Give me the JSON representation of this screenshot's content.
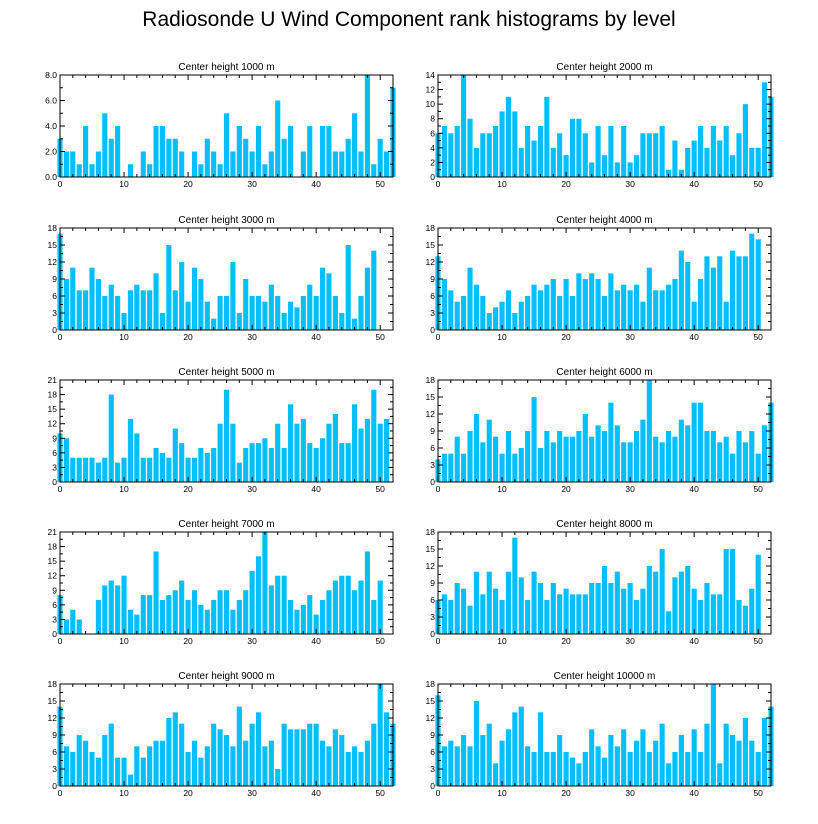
{
  "title": "Radiosonde U Wind Component rank histograms by level",
  "colors": {
    "bar": "#00bfff",
    "axis": "#000000"
  },
  "chart_data": [
    {
      "type": "bar",
      "title": "Center height 1000 m",
      "xlim": [
        0,
        52
      ],
      "xticks": [
        0,
        10,
        20,
        30,
        40,
        50
      ],
      "ylim": [
        0,
        8
      ],
      "yticks": [
        "0.0",
        "2.0",
        "4.0",
        "6.0",
        "8.0"
      ],
      "values": [
        3,
        2,
        2,
        1,
        4,
        1,
        2,
        5,
        3,
        4,
        0,
        1,
        0,
        2,
        1,
        4,
        4,
        3,
        3,
        2,
        0,
        2,
        1,
        3,
        2,
        1,
        5,
        2,
        4,
        3,
        2,
        4,
        1,
        2,
        6,
        3,
        4,
        0,
        2,
        4,
        0,
        4,
        4,
        2,
        2,
        3,
        5,
        2,
        8,
        1,
        3,
        2,
        7
      ]
    },
    {
      "type": "bar",
      "title": "Center height 2000 m",
      "xlim": [
        0,
        52
      ],
      "xticks": [
        0,
        10,
        20,
        30,
        40,
        50
      ],
      "ylim": [
        0,
        14
      ],
      "yticks": [
        "0",
        "2",
        "4",
        "6",
        "8",
        "10",
        "12",
        "14"
      ],
      "values": [
        6,
        7,
        6,
        7,
        14,
        8,
        4,
        6,
        6,
        7,
        9,
        11,
        9,
        4,
        7,
        5,
        7,
        11,
        4,
        6,
        3,
        8,
        8,
        6,
        2,
        7,
        3,
        7,
        2,
        7,
        2,
        3,
        6,
        6,
        6,
        7,
        1,
        5,
        1,
        4,
        5,
        7,
        4,
        7,
        5,
        7,
        3,
        6,
        10,
        4,
        4,
        13,
        11
      ]
    },
    {
      "type": "bar",
      "title": "Center height 3000 m",
      "xlim": [
        0,
        52
      ],
      "xticks": [
        0,
        10,
        20,
        30,
        40,
        50
      ],
      "ylim": [
        0,
        18
      ],
      "yticks": [
        "0",
        "3",
        "6",
        "9",
        "12",
        "15",
        "18"
      ],
      "values": [
        17,
        9,
        11,
        7,
        7,
        11,
        9,
        6,
        8,
        6,
        3,
        7,
        8,
        7,
        7,
        10,
        3,
        15,
        7,
        12,
        5,
        11,
        9,
        5,
        2,
        6,
        6,
        12,
        3,
        9,
        6,
        6,
        5,
        8,
        6,
        3,
        5,
        4,
        6,
        8,
        6,
        11,
        10,
        6,
        3,
        15,
        2,
        6,
        11,
        14
      ]
    },
    {
      "type": "bar",
      "title": "Center height 4000 m",
      "xlim": [
        0,
        52
      ],
      "xticks": [
        0,
        10,
        20,
        30,
        40,
        50
      ],
      "ylim": [
        0,
        18
      ],
      "yticks": [
        "0",
        "3",
        "6",
        "9",
        "12",
        "15",
        "18"
      ],
      "values": [
        13,
        9,
        7,
        5,
        6,
        11,
        8,
        6,
        3,
        4,
        5,
        7,
        3,
        5,
        6,
        8,
        7,
        8,
        9,
        6,
        9,
        6,
        10,
        9,
        10,
        9,
        6,
        10,
        7,
        8,
        7,
        8,
        5,
        11,
        7,
        7,
        8,
        9,
        14,
        12,
        5,
        9,
        13,
        11,
        13,
        5,
        14,
        13,
        13,
        17,
        16
      ]
    },
    {
      "type": "bar",
      "title": "Center height 5000 m",
      "xlim": [
        0,
        52
      ],
      "xticks": [
        0,
        10,
        20,
        30,
        40,
        50
      ],
      "ylim": [
        0,
        21
      ],
      "yticks": [
        "0",
        "3",
        "6",
        "9",
        "12",
        "15",
        "18",
        "21"
      ],
      "values": [
        10,
        9,
        5,
        5,
        5,
        5,
        4,
        5,
        18,
        4,
        5,
        13,
        10,
        5,
        5,
        7,
        6,
        5,
        11,
        8,
        5,
        5,
        7,
        6,
        7,
        12,
        19,
        12,
        4,
        7,
        8,
        8,
        9,
        7,
        12,
        7,
        16,
        12,
        13,
        8,
        7,
        9,
        12,
        14,
        8,
        8,
        16,
        11,
        13,
        19,
        12,
        13
      ]
    },
    {
      "type": "bar",
      "title": "Center height 6000 m",
      "xlim": [
        0,
        52
      ],
      "xticks": [
        0,
        10,
        20,
        30,
        40,
        50
      ],
      "ylim": [
        0,
        18
      ],
      "yticks": [
        "0",
        "3",
        "6",
        "9",
        "12",
        "15",
        "18"
      ],
      "values": [
        4,
        5,
        5,
        8,
        5,
        9,
        12,
        7,
        11,
        8,
        5,
        9,
        5,
        6,
        9,
        15,
        6,
        9,
        7,
        9,
        8,
        8,
        9,
        12,
        8,
        10,
        9,
        14,
        10,
        7,
        7,
        9,
        11,
        18,
        8,
        7,
        9,
        8,
        11,
        10,
        14,
        14,
        9,
        9,
        7,
        8,
        5,
        9,
        7,
        9,
        5,
        10,
        14
      ]
    },
    {
      "type": "bar",
      "title": "Center height 7000 m",
      "xlim": [
        0,
        52
      ],
      "xticks": [
        0,
        10,
        20,
        30,
        40,
        50
      ],
      "ylim": [
        0,
        21
      ],
      "yticks": [
        "0",
        "3",
        "6",
        "9",
        "12",
        "15",
        "18",
        "21"
      ],
      "values": [
        8,
        3,
        5,
        3,
        0,
        0,
        7,
        10,
        11,
        10,
        12,
        5,
        4,
        8,
        8,
        17,
        7,
        8,
        9,
        11,
        7,
        9,
        6,
        5,
        7,
        9,
        9,
        5,
        7,
        9,
        13,
        16,
        21,
        10,
        12,
        12,
        7,
        5,
        6,
        8,
        4,
        7,
        9,
        11,
        12,
        12,
        9,
        11,
        17,
        7,
        11
      ]
    },
    {
      "type": "bar",
      "title": "Center height 8000 m",
      "xlim": [
        0,
        52
      ],
      "xticks": [
        0,
        10,
        20,
        30,
        40,
        50
      ],
      "ylim": [
        0,
        18
      ],
      "yticks": [
        "0",
        "3",
        "6",
        "9",
        "12",
        "15",
        "18"
      ],
      "values": [
        6,
        7,
        6,
        9,
        8,
        5,
        11,
        7,
        11,
        8,
        6,
        11,
        17,
        10,
        6,
        11,
        9,
        6,
        9,
        7,
        8,
        7,
        7,
        7,
        9,
        9,
        12,
        9,
        11,
        8,
        9,
        6,
        8,
        12,
        11,
        15,
        4,
        10,
        11,
        12,
        8,
        6,
        9,
        7,
        7,
        15,
        15,
        6,
        5,
        8,
        14
      ]
    },
    {
      "type": "bar",
      "title": "Center height 9000 m",
      "xlim": [
        0,
        52
      ],
      "xticks": [
        0,
        10,
        20,
        30,
        40,
        50
      ],
      "ylim": [
        0,
        18
      ],
      "yticks": [
        "0",
        "3",
        "6",
        "9",
        "12",
        "15",
        "18"
      ],
      "values": [
        14,
        7,
        6,
        9,
        8,
        6,
        5,
        9,
        11,
        5,
        5,
        2,
        7,
        5,
        7,
        8,
        8,
        12,
        13,
        11,
        6,
        8,
        5,
        7,
        11,
        10,
        9,
        7,
        14,
        8,
        11,
        13,
        7,
        8,
        3,
        11,
        10,
        10,
        10,
        11,
        11,
        8,
        7,
        10,
        9,
        6,
        7,
        6,
        8,
        11,
        18,
        13,
        11
      ]
    },
    {
      "type": "bar",
      "title": "Center height 10000 m",
      "xlim": [
        0,
        52
      ],
      "xticks": [
        0,
        10,
        20,
        30,
        40,
        50
      ],
      "ylim": [
        0,
        18
      ],
      "yticks": [
        "0",
        "3",
        "6",
        "9",
        "12",
        "15",
        "18"
      ],
      "values": [
        16,
        7,
        8,
        7,
        9,
        7,
        15,
        9,
        11,
        4,
        8,
        10,
        13,
        14,
        7,
        6,
        13,
        6,
        6,
        9,
        6,
        5,
        4,
        6,
        10,
        7,
        5,
        9,
        7,
        10,
        6,
        8,
        10,
        6,
        8,
        11,
        4,
        6,
        9,
        6,
        10,
        6,
        11,
        18,
        4,
        11,
        9,
        8,
        12,
        8,
        6,
        12,
        14
      ]
    }
  ]
}
